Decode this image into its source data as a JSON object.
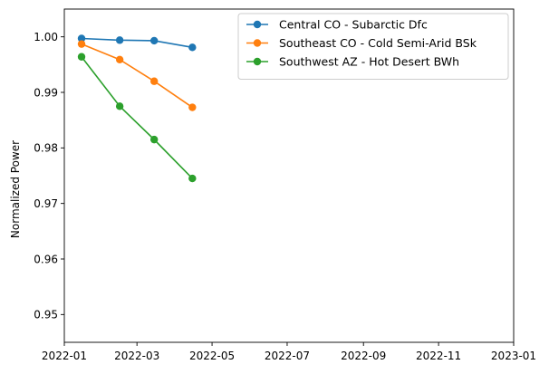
{
  "chart_data": {
    "type": "line",
    "title": "",
    "xlabel": "",
    "ylabel": "Normalized Power",
    "xlim": [
      "2022-01-01",
      "2023-01-01"
    ],
    "ylim": [
      0.945,
      1.005
    ],
    "x_ticks": [
      "2022-01",
      "2022-03",
      "2022-05",
      "2022-07",
      "2022-09",
      "2022-11",
      "2023-01"
    ],
    "y_ticks": [
      "0.95",
      "0.96",
      "0.97",
      "0.98",
      "0.99",
      "1.00"
    ],
    "grid": false,
    "legend_position": "top-right",
    "x": [
      "2022-01-15",
      "2022-02-15",
      "2022-03-15",
      "2022-04-15"
    ],
    "series": [
      {
        "name": "Central CO - Subarctic Dfc",
        "color": "#1f77b4",
        "values": [
          0.9997,
          0.9994,
          0.9993,
          0.9981
        ]
      },
      {
        "name": "Southeast CO - Cold Semi-Arid BSk",
        "color": "#ff7f0e",
        "values": [
          0.9987,
          0.9959,
          0.992,
          0.9873
        ]
      },
      {
        "name": "Southwest AZ - Hot Desert BWh",
        "color": "#2ca02c",
        "values": [
          0.9964,
          0.9875,
          0.9815,
          0.9745
        ]
      }
    ]
  }
}
